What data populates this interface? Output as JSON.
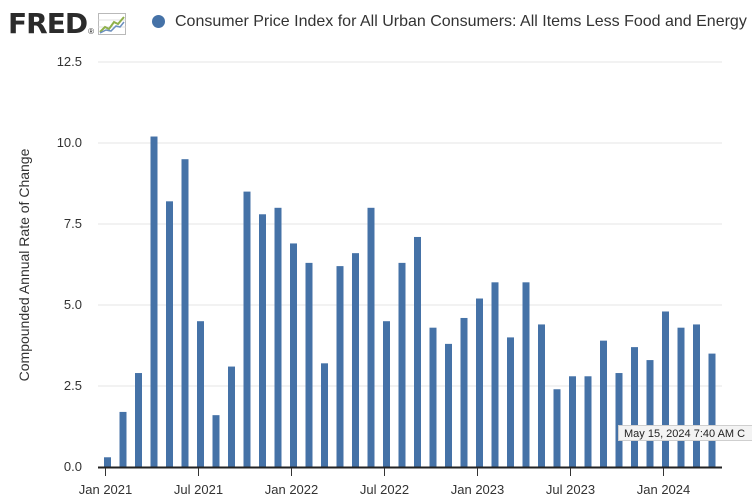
{
  "header": {
    "logo_text": "FRED",
    "logo_reg": "®",
    "series_title": "Consumer Price Index for All Urban Consumers: All Items Less Food and Energy in",
    "series_color": "#4572a7"
  },
  "tooltip": {
    "text": "May 15, 2024 7:40 AM C"
  },
  "chart_data": {
    "type": "bar",
    "title": "Consumer Price Index for All Urban Consumers: All Items Less Food and Energy in",
    "ylabel": "Compounded Annual Rate of Change",
    "xlabel": "",
    "ylim": [
      0,
      12.5
    ],
    "yticks": [
      0,
      2.5,
      5,
      7.5,
      10,
      12.5
    ],
    "ytick_labels": [
      "0.0",
      "2.5",
      "5.0",
      "7.5",
      "10.0",
      "12.5"
    ],
    "xtick_labels": [
      "Jan 2021",
      "Jul 2021",
      "Jan 2022",
      "Jul 2022",
      "Jan 2023",
      "Jul 2023",
      "Jan 2024"
    ],
    "xtick_index": [
      0,
      6,
      12,
      18,
      24,
      30,
      36
    ],
    "grid": true,
    "bar_color": "#4572a7",
    "categories": [
      "2021-01",
      "2021-02",
      "2021-03",
      "2021-04",
      "2021-05",
      "2021-06",
      "2021-07",
      "2021-08",
      "2021-09",
      "2021-10",
      "2021-11",
      "2021-12",
      "2022-01",
      "2022-02",
      "2022-03",
      "2022-04",
      "2022-05",
      "2022-06",
      "2022-07",
      "2022-08",
      "2022-09",
      "2022-10",
      "2022-11",
      "2022-12",
      "2023-01",
      "2023-02",
      "2023-03",
      "2023-04",
      "2023-05",
      "2023-06",
      "2023-07",
      "2023-08",
      "2023-09",
      "2023-10",
      "2023-11",
      "2023-12",
      "2024-01",
      "2024-02",
      "2024-03",
      "2024-04"
    ],
    "values": [
      0.3,
      1.7,
      2.9,
      10.2,
      8.2,
      9.5,
      4.5,
      1.6,
      3.1,
      8.5,
      7.8,
      8.0,
      6.9,
      6.3,
      3.2,
      6.2,
      6.6,
      8.0,
      4.5,
      6.3,
      7.1,
      4.3,
      3.8,
      4.6,
      5.2,
      5.7,
      4.0,
      5.7,
      4.4,
      2.4,
      2.8,
      2.8,
      3.9,
      2.9,
      3.7,
      3.3,
      4.8,
      4.3,
      4.4,
      3.5
    ]
  }
}
